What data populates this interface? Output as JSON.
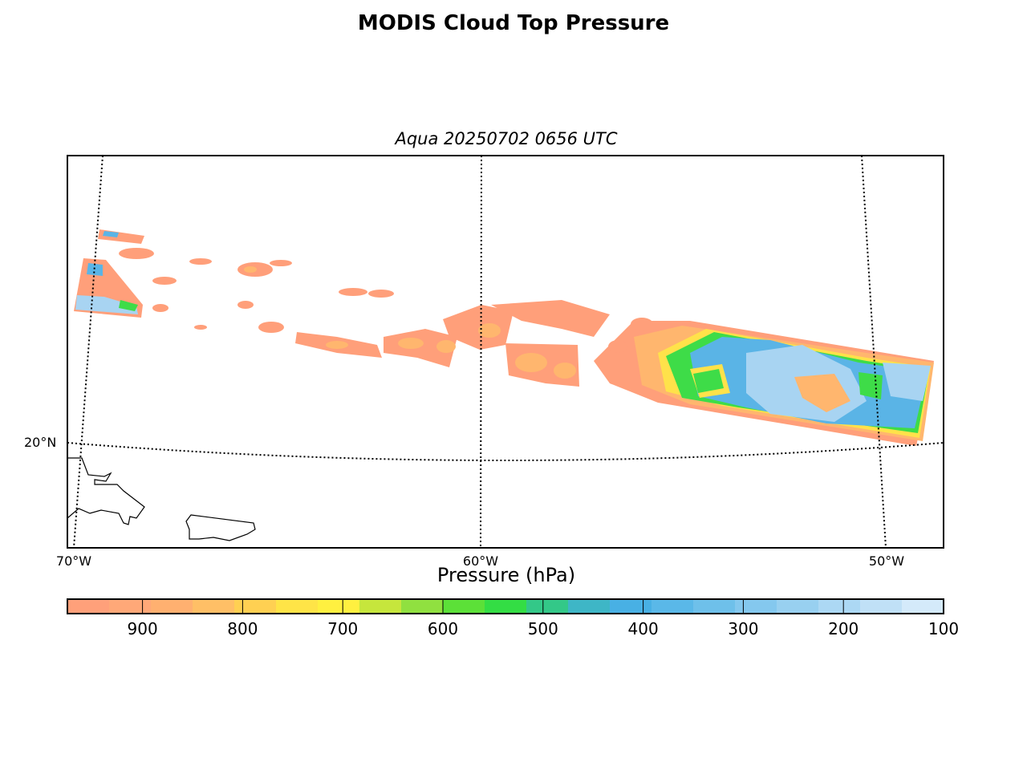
{
  "title": "MODIS Cloud Top Pressure",
  "subtitle": "Aqua 20250702 0656 UTC",
  "map": {
    "parallels": [
      {
        "label": "20°N"
      }
    ],
    "meridians": [
      {
        "label": "70°W"
      },
      {
        "label": "60°W"
      },
      {
        "label": "50°W"
      }
    ]
  },
  "colorbar": {
    "title": "Pressure (hPa)",
    "range_hpa": [
      975,
      100
    ],
    "ticks": [
      "900",
      "800",
      "700",
      "600",
      "500",
      "400",
      "300",
      "200",
      "100"
    ],
    "colors": [
      "#ffa07a",
      "#ffa878",
      "#ffb070",
      "#ffbf66",
      "#ffd052",
      "#ffe447",
      "#fff040",
      "#c6e63c",
      "#90e040",
      "#5ce038",
      "#33dd44",
      "#33c888",
      "#3eb6c6",
      "#48b0e4",
      "#5ab8e8",
      "#6ec0ea",
      "#84c8ee",
      "#98d0f0",
      "#acd8f4",
      "#c0e0f6",
      "#d4eafa"
    ]
  },
  "palette": {
    "low": "#ff9f7a",
    "low_mid": "#ffb66e",
    "mid": "#ffe24a",
    "green": "#3edc48",
    "high": "#5ab4e6",
    "very_high": "#a8d4f2"
  }
}
